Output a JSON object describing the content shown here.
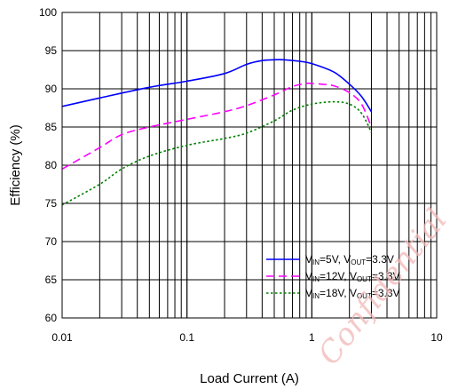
{
  "chart_data": {
    "type": "line",
    "xlabel": "Load Current (A)",
    "ylabel": "Efficiency (%)",
    "xscale": "log",
    "xlim": [
      0.01,
      10
    ],
    "ylim": [
      60,
      100
    ],
    "grid": true,
    "legend_position": "bottom-right",
    "x_ticks": [
      "0.01",
      "0.1",
      "1",
      "10"
    ],
    "y_ticks": [
      "60",
      "65",
      "70",
      "75",
      "80",
      "85",
      "90",
      "95",
      "100"
    ],
    "series": [
      {
        "name_parts": [
          "V",
          "IN",
          "=5V, V",
          "OUT",
          "=3.3V"
        ],
        "color": "#0000ff",
        "style": "solid",
        "x": [
          0.01,
          0.02,
          0.05,
          0.1,
          0.2,
          0.3,
          0.4,
          0.5,
          0.6,
          0.8,
          1.0,
          1.5,
          2.0,
          2.5,
          3.0
        ],
        "y": [
          87.7,
          88.8,
          90.2,
          91.0,
          92.0,
          93.2,
          93.7,
          93.8,
          93.8,
          93.6,
          93.3,
          92.2,
          90.6,
          89.0,
          87.0
        ]
      },
      {
        "name_parts": [
          "V",
          "IN",
          "=12V, V",
          "OUT",
          "=3.3V"
        ],
        "color": "#ff00ff",
        "style": "dashed",
        "x": [
          0.01,
          0.02,
          0.03,
          0.05,
          0.1,
          0.2,
          0.3,
          0.5,
          0.7,
          0.9,
          1.0,
          1.2,
          1.5,
          2.0,
          2.5,
          3.0
        ],
        "y": [
          79.5,
          82.3,
          84.0,
          85.0,
          86.0,
          87.0,
          87.8,
          89.2,
          90.3,
          90.7,
          90.7,
          90.6,
          90.4,
          89.5,
          88.0,
          85.0
        ]
      },
      {
        "name_parts": [
          "V",
          "IN",
          "=18V, V",
          "OUT",
          "=3.3V"
        ],
        "color": "#008000",
        "style": "dotted",
        "x": [
          0.01,
          0.02,
          0.03,
          0.05,
          0.1,
          0.2,
          0.3,
          0.5,
          0.7,
          1.0,
          1.5,
          2.0,
          2.5,
          3.0
        ],
        "y": [
          74.8,
          77.5,
          79.5,
          81.2,
          82.6,
          83.5,
          84.2,
          85.8,
          87.2,
          88.0,
          88.3,
          88.0,
          86.8,
          84.3
        ]
      }
    ]
  },
  "watermark": "Confidential"
}
